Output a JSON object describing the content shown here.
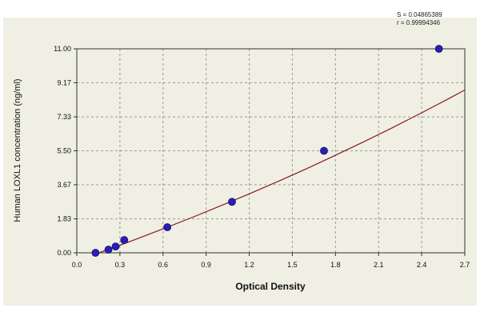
{
  "chart_data": {
    "type": "scatter",
    "title": "",
    "xlabel": "Optical Density",
    "ylabel": "Human LOXL1 concentration (ng/ml)",
    "xlim": [
      0.0,
      2.7
    ],
    "ylim": [
      0.0,
      11.0
    ],
    "x_ticks": [
      0.0,
      0.3,
      0.6,
      0.9,
      1.2,
      1.5,
      1.8,
      2.1,
      2.4,
      2.7
    ],
    "x_tick_labels": [
      "0.0",
      "0.3",
      "0.6",
      "0.9",
      "1.2",
      "1.5",
      "1.8",
      "2.1",
      "2.4",
      "2.7"
    ],
    "y_ticks": [
      0.0,
      1.83,
      3.67,
      5.5,
      7.33,
      9.17,
      11.0
    ],
    "y_tick_labels": [
      "0.00",
      "1.83",
      "3.67",
      "5.50",
      "7.33",
      "9.17",
      "11.00"
    ],
    "grid": true,
    "annotations": [
      "S = 0.04865389",
      "r = 0.99994346"
    ],
    "series": [
      {
        "kind": "points",
        "color": "#2a1fb0",
        "x": [
          0.13,
          0.22,
          0.27,
          0.33,
          0.63,
          1.08,
          1.72,
          2.52
        ],
        "y": [
          0.0,
          0.17,
          0.34,
          0.69,
          1.38,
          2.75,
          5.5,
          11.0
        ]
      },
      {
        "kind": "fit-curve",
        "color": "#8b1a1a",
        "x": [
          0.08,
          0.2,
          0.3,
          0.4,
          0.6,
          0.8,
          1.0,
          1.2,
          1.4,
          1.6,
          1.8,
          2.0,
          2.2,
          2.4,
          2.6,
          2.7
        ],
        "y": [
          -0.21,
          0.13,
          0.41,
          0.7,
          1.29,
          1.9,
          2.53,
          3.18,
          3.85,
          4.54,
          5.26,
          6.0,
          6.76,
          7.55,
          8.36,
          8.78
        ]
      }
    ]
  }
}
